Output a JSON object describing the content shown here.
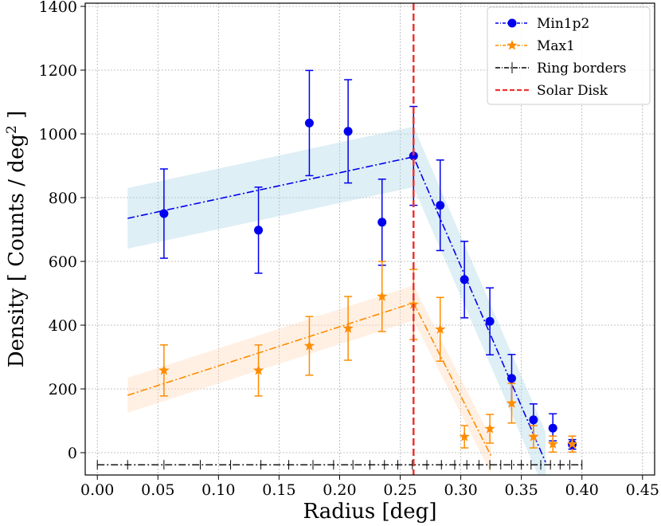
{
  "chart_data": {
    "type": "scatter",
    "title": "",
    "xlabel": "Radius [deg]",
    "ylabel_main": "Density [ Counts / deg",
    "ylabel_sup": "2",
    "ylabel_end": " ]",
    "xlim": [
      -0.01,
      0.46
    ],
    "ylim": [
      -70,
      1410
    ],
    "xticks": [
      0.0,
      0.05,
      0.1,
      0.15,
      0.2,
      0.25,
      0.3,
      0.35,
      0.4,
      0.45
    ],
    "xtick_labels": [
      "0.00",
      "0.05",
      "0.10",
      "0.15",
      "0.20",
      "0.25",
      "0.30",
      "0.35",
      "0.40",
      "0.45"
    ],
    "yticks": [
      0,
      200,
      400,
      600,
      800,
      1000,
      1200,
      1400
    ],
    "ytick_labels": [
      "0",
      "200",
      "400",
      "600",
      "800",
      "1000",
      "1200",
      "1400"
    ],
    "grid": true,
    "legend_position": "top-right",
    "series": [
      {
        "name": "Min1p2",
        "color": "#0000ee",
        "marker": "circle",
        "x": [
          0.055,
          0.133,
          0.175,
          0.207,
          0.235,
          0.261,
          0.283,
          0.303,
          0.324,
          0.342,
          0.36,
          0.376,
          0.392
        ],
        "y": [
          750,
          698,
          1034,
          1008,
          723,
          931,
          776,
          543,
          412,
          233,
          103,
          77,
          26
        ],
        "err_low": [
          140,
          135,
          165,
          162,
          135,
          155,
          142,
          120,
          105,
          75,
          50,
          40,
          15
        ],
        "err_high": [
          140,
          135,
          165,
          162,
          135,
          155,
          142,
          120,
          105,
          75,
          50,
          45,
          15
        ],
        "fit_x": [
          0.025,
          0.261,
          0.37
        ],
        "fit_y": [
          735,
          928,
          -30
        ],
        "band_color": "#add8e6",
        "band_halfwidth": 95
      },
      {
        "name": "Max1",
        "color": "#ff8c00",
        "marker": "star",
        "x": [
          0.055,
          0.133,
          0.175,
          0.207,
          0.235,
          0.261,
          0.283,
          0.303,
          0.324,
          0.342,
          0.36,
          0.376,
          0.392
        ],
        "y": [
          258,
          258,
          335,
          390,
          490,
          465,
          387,
          50,
          75,
          155,
          50,
          27,
          27
        ],
        "err_low": [
          80,
          80,
          92,
          100,
          110,
          110,
          100,
          35,
          45,
          62,
          35,
          25,
          25
        ],
        "err_high": [
          80,
          80,
          92,
          100,
          110,
          110,
          100,
          35,
          45,
          62,
          35,
          25,
          25
        ],
        "fit_x": [
          0.025,
          0.261,
          0.325
        ],
        "fit_y": [
          180,
          470,
          -10
        ],
        "band_color": "#ffdab9",
        "band_halfwidth": 55
      }
    ],
    "ring_borders": {
      "name": "Ring borders",
      "y": -38,
      "x_start": 0.0,
      "x_end": 0.4,
      "markers_x": [
        0.0,
        0.025,
        0.055,
        0.085,
        0.11,
        0.135,
        0.158,
        0.178,
        0.195,
        0.211,
        0.225,
        0.237,
        0.248,
        0.26,
        0.272,
        0.284,
        0.295,
        0.305,
        0.315,
        0.324,
        0.333,
        0.342,
        0.35,
        0.358,
        0.366,
        0.374,
        0.382,
        0.39,
        0.4
      ],
      "color": "#000000"
    },
    "solar_disk": {
      "name": "Solar Disk",
      "x": 0.261,
      "color": "#ee3333"
    }
  }
}
